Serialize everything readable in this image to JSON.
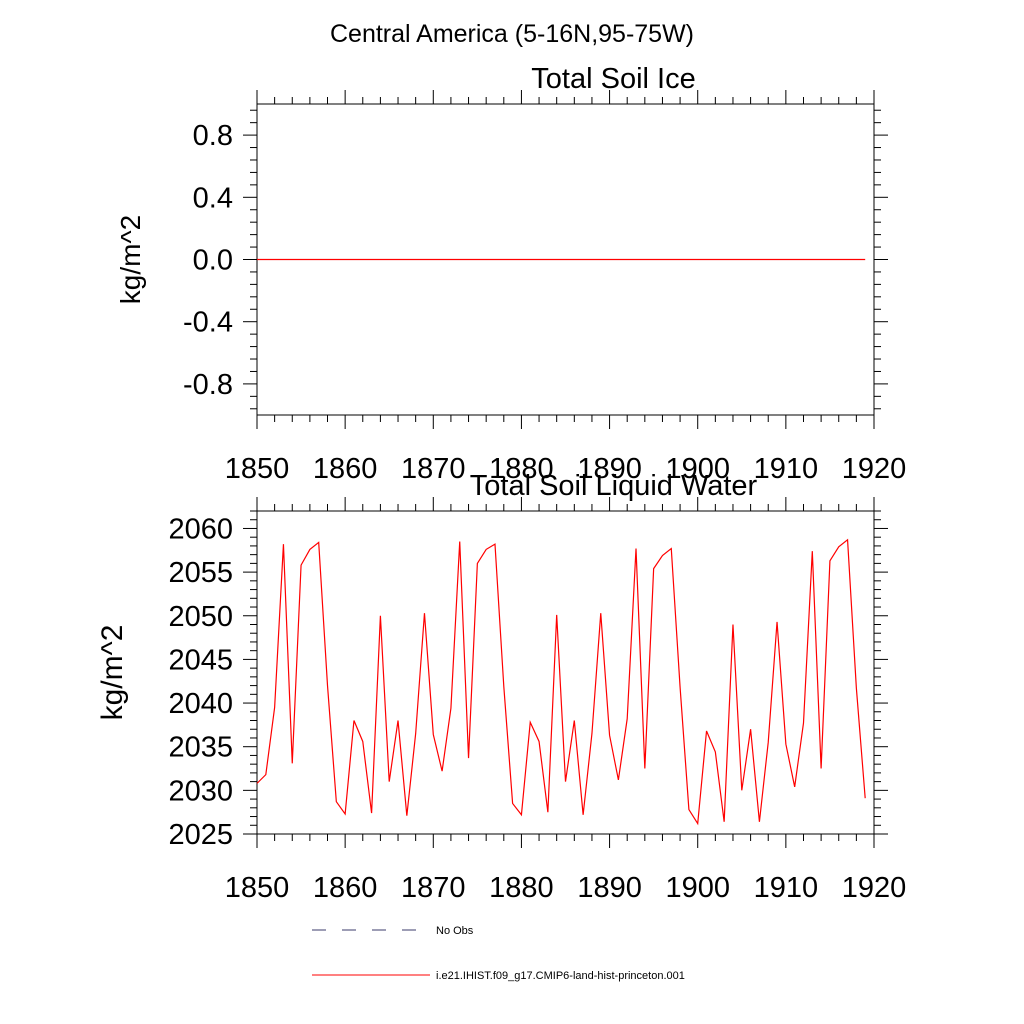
{
  "page_title": "Central America (5-16N,95-75W)",
  "colors": {
    "model_line": "#ff0000",
    "obs_line": "#3b3b6b",
    "axis": "#000000"
  },
  "legend": {
    "obs_label": "No Obs",
    "model_label": "i.e21.IHIST.f09_g17.CMIP6-land-hist-princeton.001"
  },
  "chart_data": [
    {
      "type": "line",
      "title": "Total Soil Ice",
      "xlabel": "",
      "ylabel": "kg/m^2",
      "xlim": [
        1850,
        1920
      ],
      "ylim": [
        -1.0,
        1.0
      ],
      "x_ticks": [
        1850,
        1860,
        1870,
        1880,
        1890,
        1900,
        1910,
        1920
      ],
      "x_tick_labels": [
        "1850",
        "1860",
        "1870",
        "1880",
        "1890",
        "1900",
        "1910",
        "1920"
      ],
      "y_ticks": [
        -0.8,
        -0.4,
        0.0,
        0.4,
        0.8
      ],
      "y_tick_labels": [
        "-0.8",
        "-0.4",
        "0.0",
        "0.4",
        "0.8"
      ],
      "grid": false,
      "series": [
        {
          "x": [
            1850,
            1919
          ],
          "values": [
            0,
            0
          ],
          "color": "#ff0000"
        }
      ]
    },
    {
      "type": "line",
      "title": "Total Soil Liquid Water",
      "xlabel": "",
      "ylabel": "kg/m^2",
      "xlim": [
        1850,
        1920
      ],
      "ylim": [
        2025,
        2062
      ],
      "x_ticks": [
        1850,
        1860,
        1870,
        1880,
        1890,
        1900,
        1910,
        1920
      ],
      "x_tick_labels": [
        "1850",
        "1860",
        "1870",
        "1880",
        "1890",
        "1900",
        "1910",
        "1920"
      ],
      "y_ticks": [
        2025,
        2030,
        2035,
        2040,
        2045,
        2050,
        2055,
        2060
      ],
      "y_tick_labels": [
        "2025",
        "2030",
        "2035",
        "2040",
        "2045",
        "2050",
        "2055",
        "2060"
      ],
      "grid": false,
      "series": [
        {
          "color": "#ff0000",
          "x": [
            1850,
            1851,
            1852,
            1853,
            1854,
            1855,
            1856,
            1857,
            1858,
            1859,
            1860,
            1861,
            1862,
            1863,
            1864,
            1865,
            1866,
            1867,
            1868,
            1869,
            1870,
            1871,
            1872,
            1873,
            1874,
            1875,
            1876,
            1877,
            1878,
            1879,
            1880,
            1881,
            1882,
            1883,
            1884,
            1885,
            1886,
            1887,
            1888,
            1889,
            1890,
            1891,
            1892,
            1893,
            1894,
            1895,
            1896,
            1897,
            1898,
            1899,
            1900,
            1901,
            1902,
            1903,
            1904,
            1905,
            1906,
            1907,
            1908,
            1909,
            1910,
            1911,
            1912,
            1913,
            1914,
            1915,
            1916,
            1917,
            1918,
            1919
          ],
          "values": [
            2030.8,
            2031.8,
            2039.5,
            2058.2,
            2033.1,
            2055.8,
            2057.6,
            2058.4,
            2042.0,
            2028.7,
            2027.3,
            2038.0,
            2035.6,
            2027.4,
            2050.0,
            2031.0,
            2038.0,
            2027.1,
            2036.5,
            2050.3,
            2036.4,
            2032.2,
            2039.4,
            2058.5,
            2033.7,
            2056.0,
            2057.6,
            2058.2,
            2041.9,
            2028.5,
            2027.2,
            2037.8,
            2035.6,
            2027.5,
            2050.1,
            2031.0,
            2038.0,
            2027.2,
            2036.5,
            2050.3,
            2036.3,
            2031.2,
            2038.2,
            2057.7,
            2032.5,
            2055.4,
            2056.9,
            2057.7,
            2041.8,
            2027.8,
            2026.2,
            2036.8,
            2034.4,
            2026.4,
            2049.0,
            2030.0,
            2037.0,
            2026.4,
            2035.5,
            2049.3,
            2035.3,
            2030.4,
            2037.7,
            2057.4,
            2032.5,
            2056.3,
            2057.9,
            2058.7,
            2041.7,
            2029.1
          ]
        }
      ]
    }
  ]
}
